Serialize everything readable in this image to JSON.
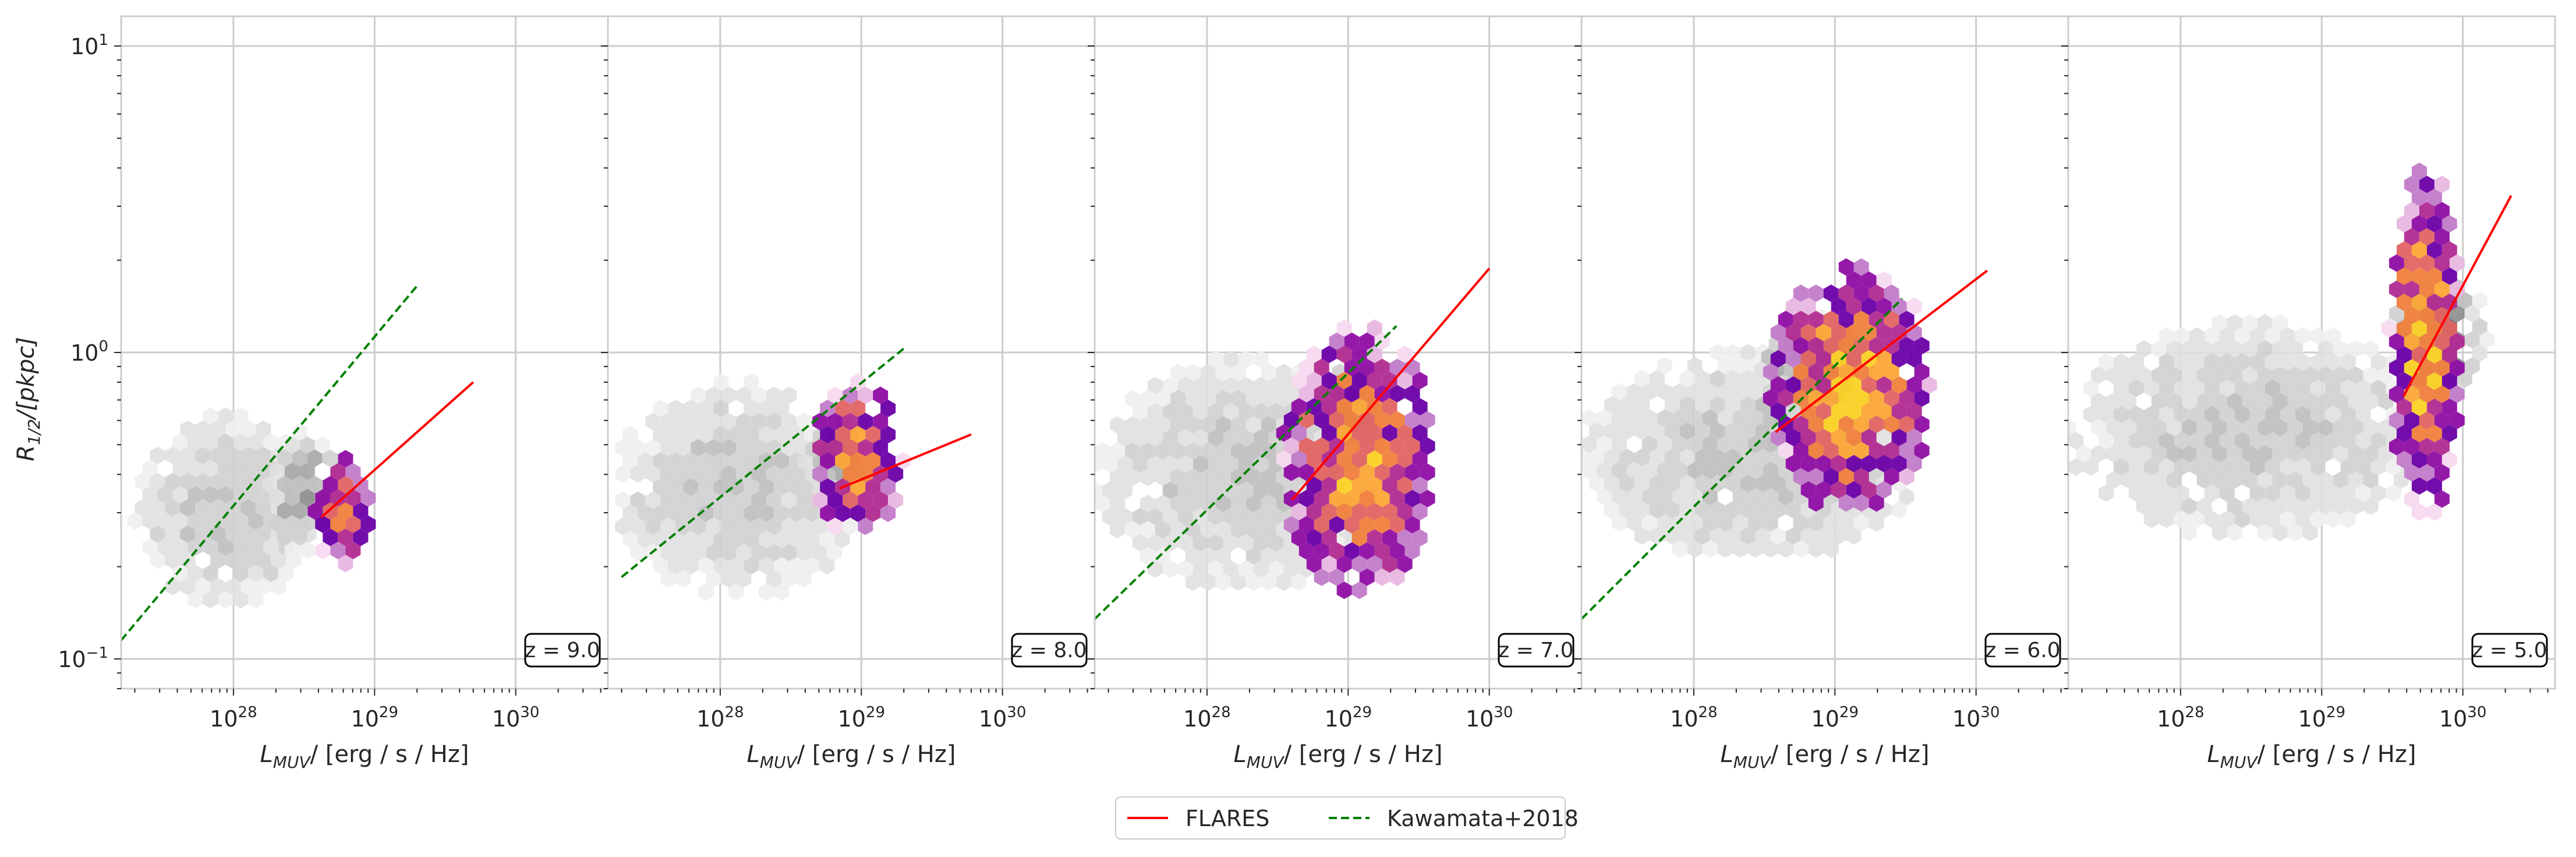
{
  "chart_data": {
    "type": "scatter",
    "xscale": "log",
    "yscale": "log",
    "xlim": [
      1.6e+27,
      4.5e+30
    ],
    "ylim": [
      0.08,
      12.5
    ],
    "grid": true,
    "legend_position": "bottom-center",
    "xlabel_main": "L",
    "xlabel_sub": "MUV",
    "xlabel_rest": "/ [erg / s / Hz]",
    "ylabel_main": "R",
    "ylabel_sub": "1/2",
    "ylabel_rest": "/[pkpc]",
    "x_ticks": [
      {
        "value": 1e+28,
        "base": "10",
        "exp": "28"
      },
      {
        "value": 1e+29,
        "base": "10",
        "exp": "29"
      },
      {
        "value": 1e+30,
        "base": "10",
        "exp": "30"
      }
    ],
    "y_ticks": [
      {
        "value": 0.1,
        "base": "10",
        "exp": "−1"
      },
      {
        "value": 1,
        "base": "10",
        "exp": "0"
      },
      {
        "value": 10,
        "base": "10",
        "exp": "1"
      }
    ],
    "legend": [
      {
        "label": "FLARES",
        "color": "#ff0000",
        "dash": "solid"
      },
      {
        "label": "Kawamata+2018",
        "color": "#008000",
        "dash": "dashed"
      }
    ],
    "panels": [
      {
        "z_label": "z = 9.0",
        "series": [
          {
            "name": "FLARES",
            "color": "#ff0000",
            "dash": "solid",
            "points": [
              [
                4.2e+28,
                0.29
              ],
              [
                5e+29,
                0.8
              ]
            ]
          },
          {
            "name": "Kawamata+2018",
            "color": "#008000",
            "dash": "dashed",
            "points": [
              [
                1.6e+27,
                0.115
              ],
              [
                2e+29,
                1.65
              ]
            ]
          }
        ],
        "gray_regions": [
          {
            "x": [
              2e+27,
              4e+28
            ],
            "y": [
              0.15,
              0.62
            ],
            "density": 0.35
          },
          {
            "x": [
              1.8e+28,
              6e+28
            ],
            "y": [
              0.22,
              0.55
            ],
            "density": 0.55
          }
        ],
        "color_regions": [
          {
            "x": [
              3.8e+28,
              1e+29
            ],
            "y": [
              0.2,
              0.45
            ],
            "density": 0.8
          }
        ]
      },
      {
        "z_label": "z = 8.0",
        "series": [
          {
            "name": "FLARES",
            "color": "#ff0000",
            "dash": "solid",
            "points": [
              [
                7e+28,
                0.36
              ],
              [
                6e+29,
                0.54
              ]
            ]
          },
          {
            "name": "Kawamata+2018",
            "color": "#008000",
            "dash": "dashed",
            "points": [
              [
                2e+27,
                0.185
              ],
              [
                2e+29,
                1.03
              ]
            ]
          }
        ],
        "gray_regions": [
          {
            "x": [
              1.8e+27,
              1e+29
            ],
            "y": [
              0.16,
              0.8
            ],
            "density": 0.35
          },
          {
            "x": [
              4e+28,
              1.2e+29
            ],
            "y": [
              0.3,
              0.65
            ],
            "density": 0.55
          }
        ],
        "color_regions": [
          {
            "x": [
              4.5e+28,
              2e+29
            ],
            "y": [
              0.25,
              0.8
            ],
            "density": 0.8
          }
        ]
      },
      {
        "z_label": "z = 7.0",
        "series": [
          {
            "name": "FLARES",
            "color": "#ff0000",
            "dash": "solid",
            "points": [
              [
                4e+28,
                0.33
              ],
              [
                1e+30,
                1.88
              ]
            ]
          },
          {
            "name": "Kawamata+2018",
            "color": "#008000",
            "dash": "dashed",
            "points": [
              [
                1.6e+27,
                0.135
              ],
              [
                2.2e+29,
                1.22
              ]
            ]
          }
        ],
        "gray_regions": [
          {
            "x": [
              1.6e+27,
              2e+29
            ],
            "y": [
              0.17,
              0.95
            ],
            "density": 0.35
          },
          {
            "x": [
              6e+28,
              1.8e+29
            ],
            "y": [
              0.45,
              0.95
            ],
            "density": 0.6
          }
        ],
        "color_regions": [
          {
            "x": [
              3.5e+28,
              4e+29
            ],
            "y": [
              0.16,
              1.2
            ],
            "density": 0.85
          }
        ]
      },
      {
        "z_label": "z = 6.0",
        "series": [
          {
            "name": "FLARES",
            "color": "#ff0000",
            "dash": "solid",
            "points": [
              [
                3.8e+28,
                0.55
              ],
              [
                1.2e+30,
                1.85
              ]
            ]
          },
          {
            "name": "Kawamata+2018",
            "color": "#008000",
            "dash": "dashed",
            "points": [
              [
                1.6e+27,
                0.135
              ],
              [
                3e+29,
                1.5
              ]
            ]
          }
        ],
        "gray_regions": [
          {
            "x": [
              1.6e+27,
              4e+29
            ],
            "y": [
              0.21,
              1.0
            ],
            "density": 0.35
          },
          {
            "x": [
              3e+28,
              2e+29
            ],
            "y": [
              0.6,
              1.3
            ],
            "density": 0.65
          }
        ],
        "color_regions": [
          {
            "x": [
              3.5e+28,
              5e+29
            ],
            "y": [
              0.3,
              1.9
            ],
            "density": 0.9
          }
        ]
      },
      {
        "z_label": "z = 5.0",
        "series": [
          {
            "name": "FLARES",
            "color": "#ff0000",
            "dash": "solid",
            "points": [
              [
                3.8e+29,
                0.72
              ],
              [
                2.2e+30,
                3.25
              ]
            ]
          }
        ],
        "gray_regions": [
          {
            "x": [
              1.6e+27,
              6e+29
            ],
            "y": [
              0.25,
              1.25
            ],
            "density": 0.35
          },
          {
            "x": [
              3e+29,
              1.5e+30
            ],
            "y": [
              0.7,
              1.8
            ],
            "density": 0.65
          }
        ],
        "color_regions": [
          {
            "x": [
              3e+29,
              1e+30
            ],
            "y": [
              0.3,
              3.9
            ],
            "density": 0.9
          }
        ]
      }
    ]
  }
}
